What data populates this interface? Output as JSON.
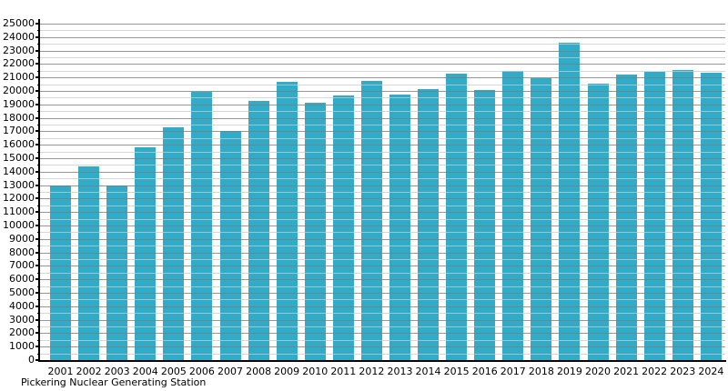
{
  "chart_data": {
    "type": "bar",
    "title": "",
    "caption": "Pickering Nuclear Generating Station",
    "xlabel": "",
    "ylabel": "",
    "categories": [
      "2001",
      "2002",
      "2003",
      "2004",
      "2005",
      "2006",
      "2007",
      "2008",
      "2009",
      "2010",
      "2011",
      "2012",
      "2013",
      "2014",
      "2015",
      "2016",
      "2017",
      "2018",
      "2019",
      "2020",
      "2021",
      "2022",
      "2023",
      "2024"
    ],
    "values": [
      13000,
      14400,
      13000,
      15800,
      17300,
      19950,
      17000,
      19250,
      20650,
      19150,
      19650,
      20750,
      19700,
      20150,
      21300,
      20050,
      21500,
      20950,
      23600,
      20550,
      21200,
      21450,
      21550,
      21350
    ],
    "ylim": [
      0,
      25000
    ],
    "y_major_step": 1000,
    "y_minor_step": 500,
    "y_tick_labels": [
      "0",
      "1000",
      "2000",
      "3000",
      "4000",
      "5000",
      "6000",
      "7000",
      "8000",
      "9000",
      "10000",
      "11000",
      "12000",
      "13000",
      "14000",
      "15000",
      "16000",
      "17000",
      "18000",
      "19000",
      "20000",
      "21000",
      "22000",
      "23000",
      "24000",
      "25000"
    ],
    "grid": "horizontal, major every 1000 (gray) + minor every 500 (light gray), drawn over bars",
    "legend": "none",
    "colors": {
      "bar": "#30ACC8",
      "major_grid": "#9e9e9e",
      "minor_grid": "#d6d6d6",
      "axis": "#000000",
      "background": "#ffffff",
      "text": "#000000"
    }
  }
}
